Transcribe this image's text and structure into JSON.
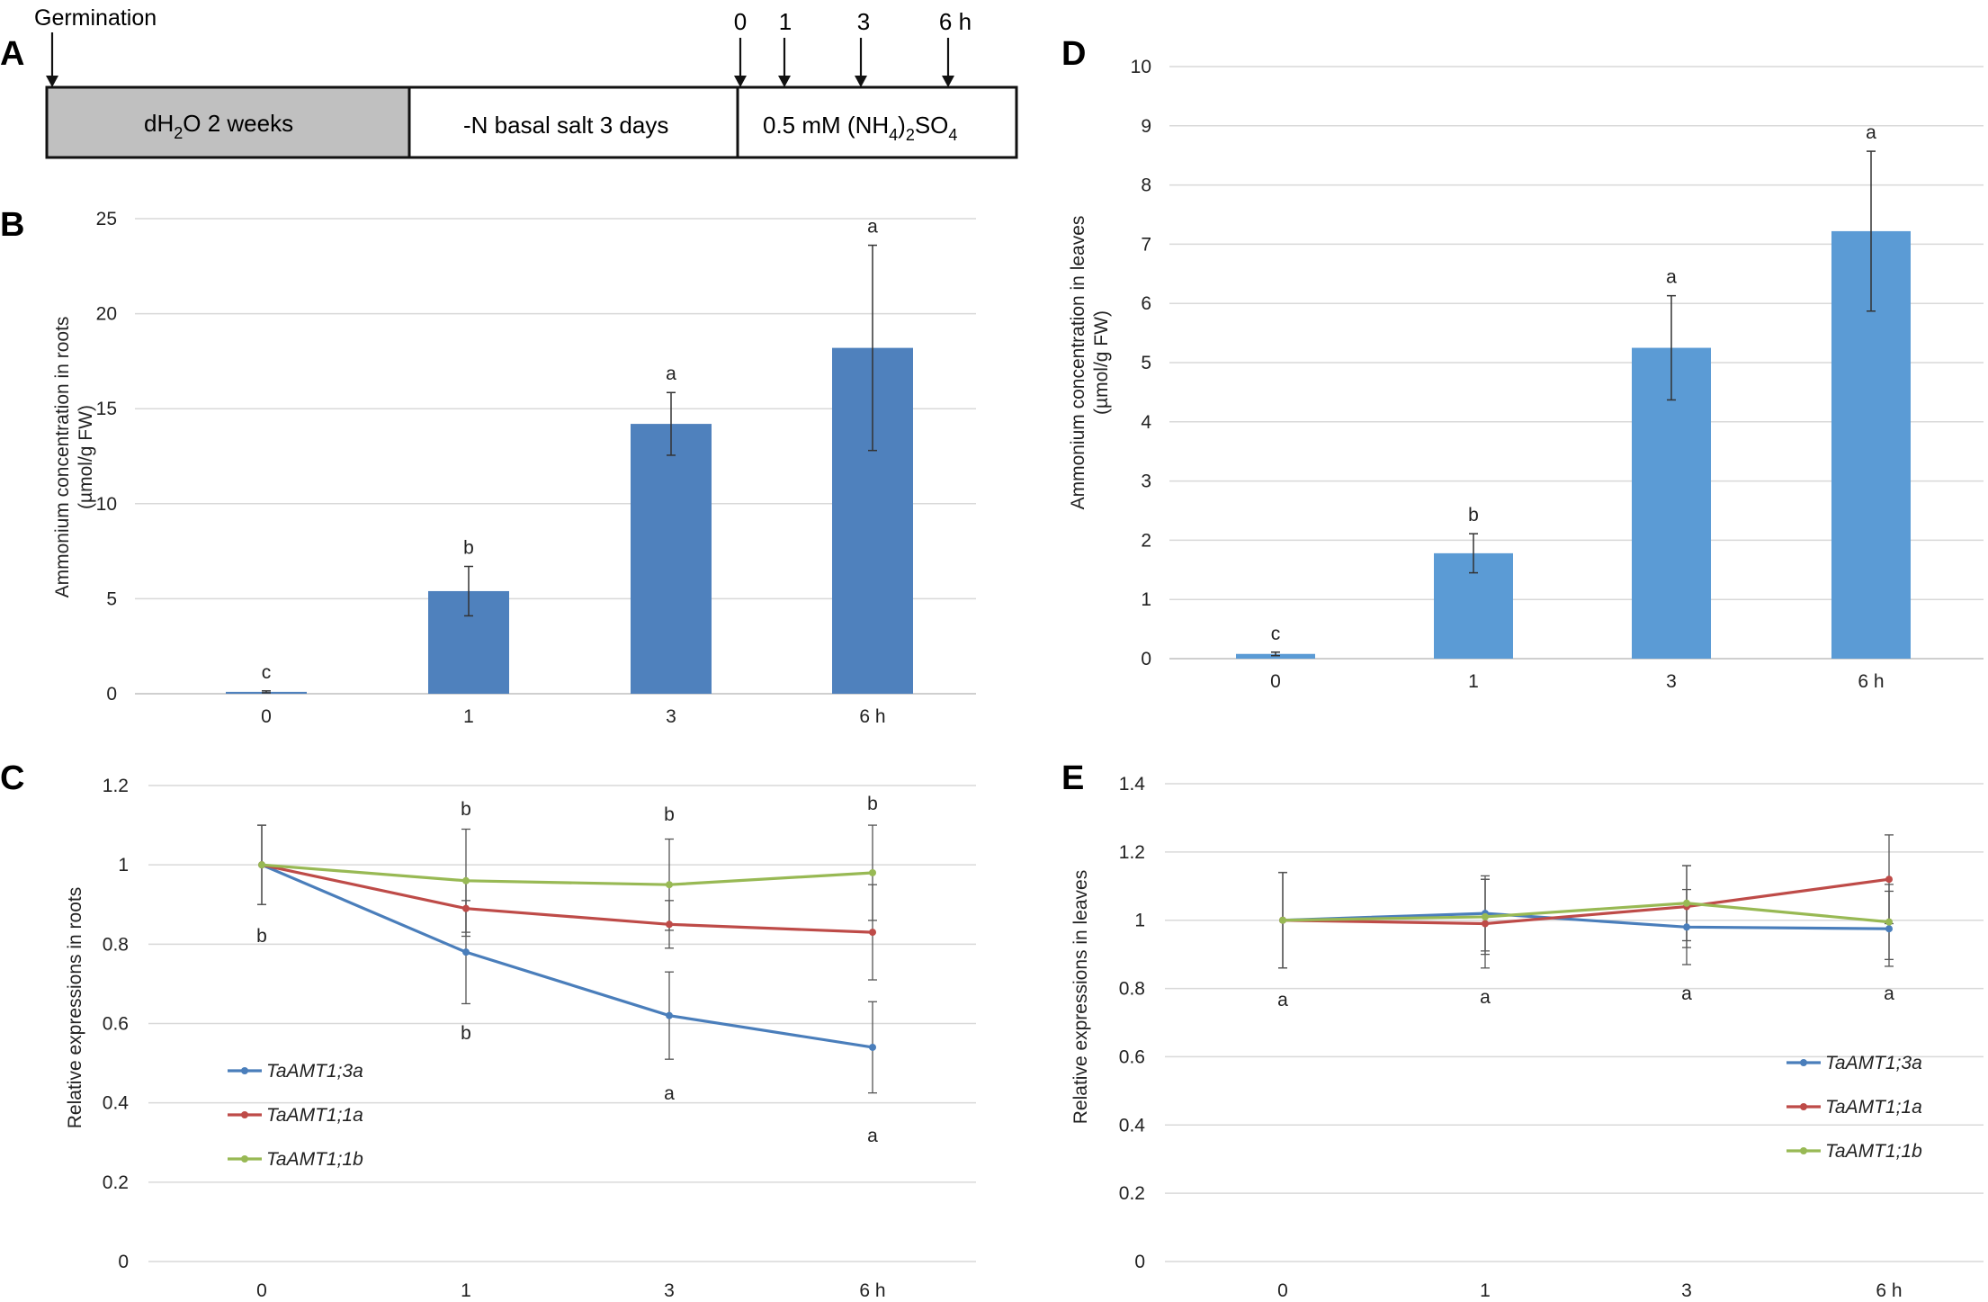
{
  "panel_labels": [
    "A",
    "B",
    "C",
    "D",
    "E"
  ],
  "timeline": {
    "germination_label": "Germination",
    "segments": [
      {
        "main": "dH",
        "sub": "2",
        "tail": "O 2 weeks",
        "fill": "#c0c0c0"
      },
      {
        "main": "-N basal salt 3 days",
        "fill": "#ffffff"
      },
      {
        "main": "0.5 mM (NH",
        "sub1": "4",
        "mid": ")",
        "sub2": "2",
        "tail": "SO",
        "sub3": "4",
        "fill": "#ffffff"
      }
    ],
    "time_labels": [
      "0",
      "1",
      "3",
      "6 h"
    ]
  },
  "chart_data": [
    {
      "id": "B",
      "type": "bar",
      "categories": [
        "0",
        "1",
        "3",
        "6 h"
      ],
      "values": [
        0.1,
        5.4,
        14.2,
        18.2
      ],
      "errors": [
        0.05,
        1.3,
        1.65,
        5.4
      ],
      "letters": [
        "c",
        "b",
        "a",
        "a"
      ],
      "ylabel_line1": "Ammonium concentration in roots",
      "ylabel_line2": "(µmol/g FW)",
      "ylim": [
        0,
        25
      ],
      "yticks": [
        0,
        5,
        10,
        15,
        20,
        25
      ],
      "color": "#4f81bd",
      "grid": true
    },
    {
      "id": "C",
      "type": "line",
      "categories": [
        "0",
        "1",
        "3",
        "6 h"
      ],
      "ylabel": "Relative expressions in roots",
      "ylim": [
        0,
        1.2
      ],
      "yticks": [
        "0",
        "0.2",
        "0.4",
        "0.6",
        "0.8",
        "1",
        "1.2"
      ],
      "series": [
        {
          "name": "TaAMT1;3a",
          "values": [
            1.0,
            0.78,
            0.62,
            0.54
          ],
          "errors": [
            0.1,
            0.13,
            0.11,
            0.115
          ],
          "color": "#4a7ebb"
        },
        {
          "name": "TaAMT1;1a",
          "values": [
            1.0,
            0.89,
            0.85,
            0.83
          ],
          "errors": [
            0.1,
            0.07,
            0.06,
            0.12
          ],
          "color": "#be4b48"
        },
        {
          "name": "TaAMT1;1b",
          "values": [
            1.0,
            0.96,
            0.95,
            0.98
          ],
          "errors": [
            0.1,
            0.13,
            0.115,
            0.12
          ],
          "color": "#98b954"
        }
      ],
      "letters_top": [
        "",
        "b",
        "b",
        "b"
      ],
      "letters_bottom": [
        "b",
        "b",
        "a",
        "a"
      ],
      "legend_position": "bottom-left",
      "grid": true
    },
    {
      "id": "D",
      "type": "bar",
      "categories": [
        "0",
        "1",
        "3",
        "6 h"
      ],
      "values": [
        0.08,
        1.78,
        5.25,
        7.22
      ],
      "errors": [
        0.03,
        0.33,
        0.88,
        1.35
      ],
      "letters": [
        "c",
        "b",
        "a",
        "a"
      ],
      "ylabel_line1": "Ammonium concentration in leaves",
      "ylabel_line2": "(µmol/g FW)",
      "ylim": [
        0,
        10
      ],
      "yticks": [
        0,
        1,
        2,
        3,
        4,
        5,
        6,
        7,
        8,
        9,
        10
      ],
      "color": "#5b9bd5",
      "grid": true
    },
    {
      "id": "E",
      "type": "line",
      "categories": [
        "0",
        "1",
        "3",
        "6 h"
      ],
      "ylabel": "Relative expressions in leaves",
      "ylim": [
        0,
        1.4
      ],
      "yticks": [
        "0",
        "0.2",
        "0.4",
        "0.6",
        "0.8",
        "1",
        "1.2",
        "1.4"
      ],
      "series": [
        {
          "name": "TaAMT1;3a",
          "values": [
            1.0,
            1.02,
            0.98,
            0.975
          ],
          "errors": [
            0.14,
            0.11,
            0.11,
            0.11
          ],
          "color": "#4a7ebb"
        },
        {
          "name": "TaAMT1;1a",
          "values": [
            1.0,
            0.99,
            1.04,
            1.12
          ],
          "errors": [
            0.14,
            0.13,
            0.12,
            0.13
          ],
          "color": "#be4b48"
        },
        {
          "name": "TaAMT1;1b",
          "values": [
            1.0,
            1.01,
            1.05,
            0.995
          ],
          "errors": [
            0.14,
            0.11,
            0.11,
            0.11
          ],
          "color": "#98b954"
        }
      ],
      "letters_bottom": [
        "a",
        "a",
        "a",
        "a"
      ],
      "legend_position": "bottom-right",
      "grid": true
    }
  ]
}
